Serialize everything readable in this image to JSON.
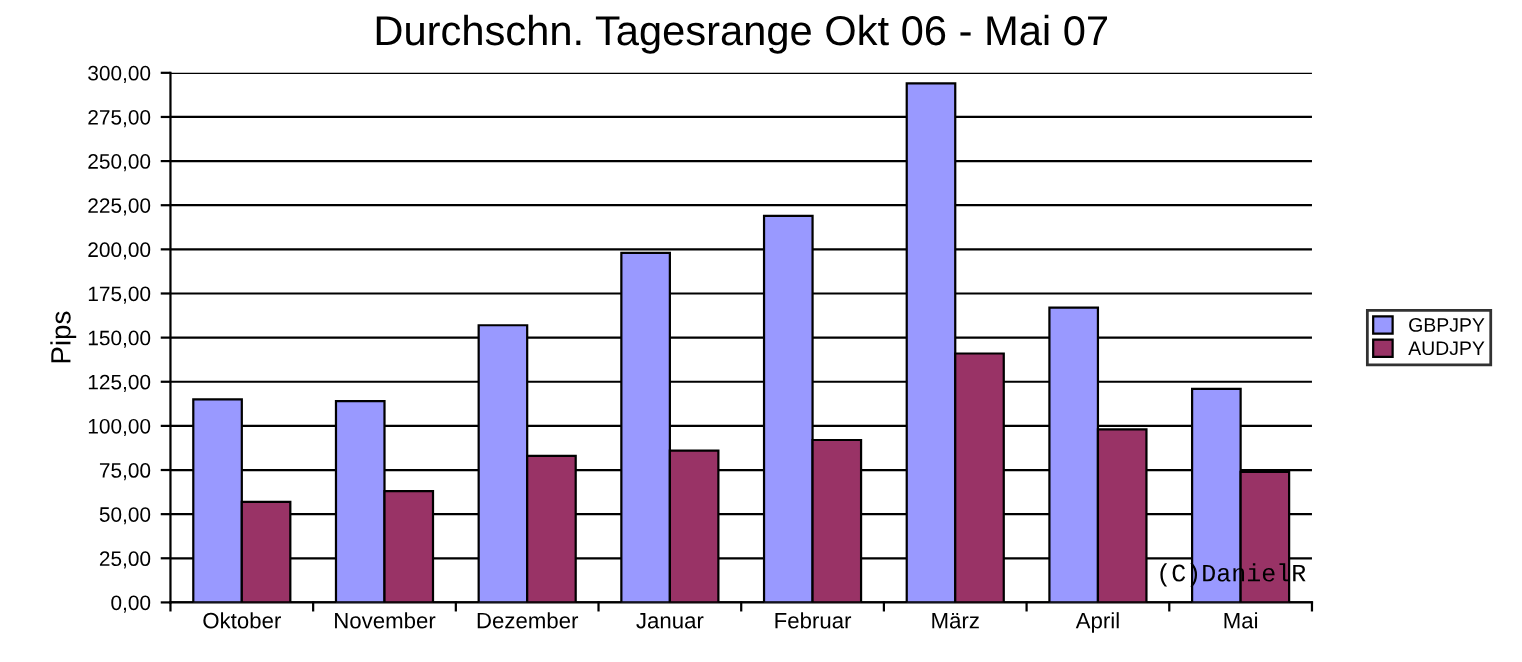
{
  "chart_data": {
    "type": "bar",
    "title": "Durchschn. Tagesrange Okt 06 - Mai 07",
    "ylabel": "Pips",
    "categories": [
      "Oktober",
      "November",
      "Dezember",
      "Januar",
      "Februar",
      "März",
      "April",
      "Mai"
    ],
    "series": [
      {
        "name": "GBPJPY",
        "color": "#9999ff",
        "values": [
          115,
          114,
          157,
          198,
          219,
          294,
          167,
          121
        ]
      },
      {
        "name": "AUDJPY",
        "color": "#993366",
        "values": [
          57,
          63,
          83,
          86,
          92,
          141,
          98,
          74
        ]
      }
    ],
    "ylim": [
      0,
      300
    ],
    "yticks": [
      {
        "value": 0,
        "label": "0,00"
      },
      {
        "value": 25,
        "label": "25,00"
      },
      {
        "value": 50,
        "label": "50,00"
      },
      {
        "value": 75,
        "label": "75,00"
      },
      {
        "value": 100,
        "label": "100,00"
      },
      {
        "value": 125,
        "label": "125,00"
      },
      {
        "value": 150,
        "label": "150,00"
      },
      {
        "value": 175,
        "label": "175,00"
      },
      {
        "value": 200,
        "label": "200,00"
      },
      {
        "value": 225,
        "label": "225,00"
      },
      {
        "value": 250,
        "label": "250,00"
      },
      {
        "value": 275,
        "label": "275,00"
      },
      {
        "value": 300,
        "label": "300,00"
      }
    ],
    "grid": "y",
    "legend": "right",
    "annotations": [
      "(C)DanielR"
    ]
  }
}
